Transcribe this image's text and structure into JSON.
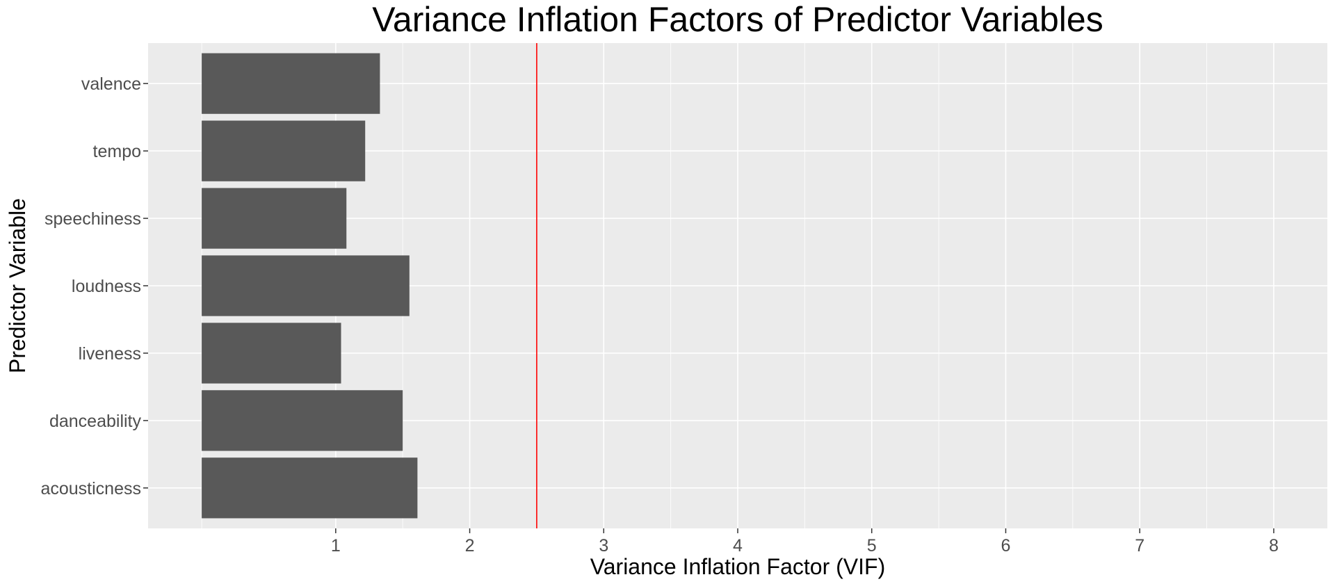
{
  "chart_data": {
    "type": "bar",
    "orientation": "horizontal",
    "title": "Variance Inflation Factors of Predictor Variables",
    "xlabel": "Variance Inflation Factor (VIF)",
    "ylabel": "Predictor Variable",
    "categories": [
      "acousticness",
      "danceability",
      "liveness",
      "loudness",
      "speechiness",
      "tempo",
      "valence"
    ],
    "values": [
      1.61,
      1.5,
      1.04,
      1.55,
      1.08,
      1.22,
      1.33
    ],
    "xlim": [
      -0.4,
      8.4
    ],
    "xticks": [
      1,
      2,
      3,
      4,
      5,
      6,
      7,
      8
    ],
    "xtick_labels": [
      "1",
      "2",
      "3",
      "4",
      "5",
      "6",
      "7",
      "8"
    ],
    "reference_line": {
      "x": 2.5,
      "color": "#ff0000"
    },
    "bar_color": "#595959",
    "panel_background": "#ebebeb",
    "grid": true,
    "legend": "none"
  }
}
